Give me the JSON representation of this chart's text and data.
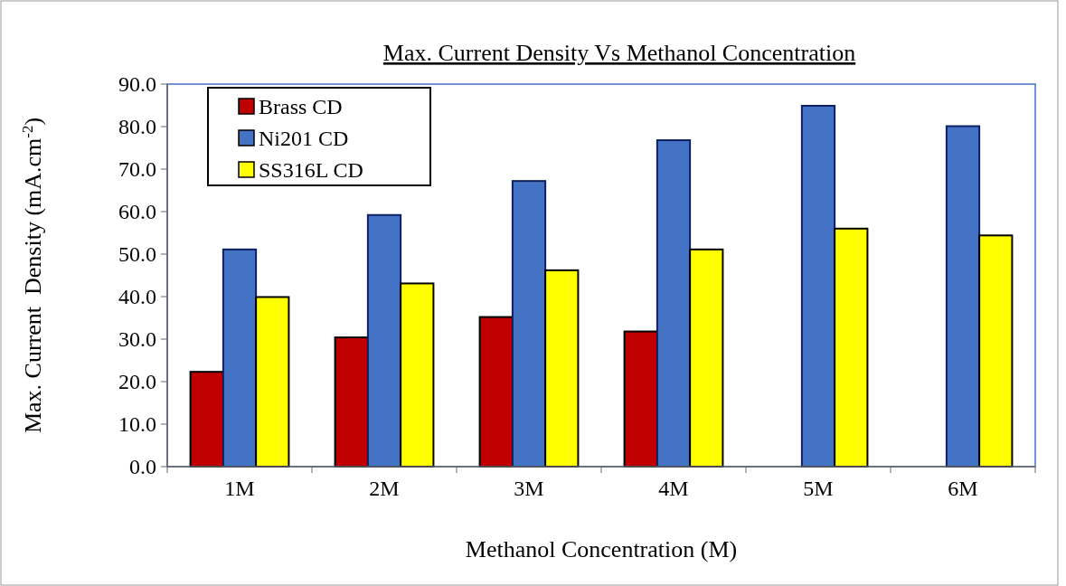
{
  "chart_data": {
    "type": "bar",
    "title": "Max. Current Density Vs Methanol Concentration",
    "xlabel": "Methanol Concentration (M)",
    "ylabel": "Max. Current  Density (mA.cm$^{-2}$)",
    "categories": [
      "1M",
      "2M",
      "3M",
      "4M",
      "5M",
      "6M"
    ],
    "series": [
      {
        "name": "Brass CD",
        "color": "#c00000",
        "values": [
          22.3,
          30.4,
          35.2,
          31.8,
          null,
          null
        ]
      },
      {
        "name": "Ni201 CD",
        "color": "#4472c4",
        "values": [
          51.1,
          59.2,
          67.2,
          76.8,
          84.9,
          80.1
        ]
      },
      {
        "name": "SS316L CD",
        "color": "#ffff00",
        "values": [
          39.9,
          43.1,
          46.2,
          51.1,
          56.0,
          54.4
        ]
      }
    ],
    "ylim": [
      0,
      90
    ],
    "yticks": [
      {
        "value": 0,
        "label": "0.0"
      },
      {
        "value": 10,
        "label": "10.0"
      },
      {
        "value": 20,
        "label": "20.0"
      },
      {
        "value": 30,
        "label": "30.0"
      },
      {
        "value": 40,
        "label": "40.0"
      },
      {
        "value": 50,
        "label": "50.0"
      },
      {
        "value": 60,
        "label": "60.0"
      },
      {
        "value": 70,
        "label": "70.0"
      },
      {
        "value": 80,
        "label": "80.0"
      },
      {
        "value": 90,
        "label": "90.0"
      }
    ],
    "legend": "top left"
  }
}
